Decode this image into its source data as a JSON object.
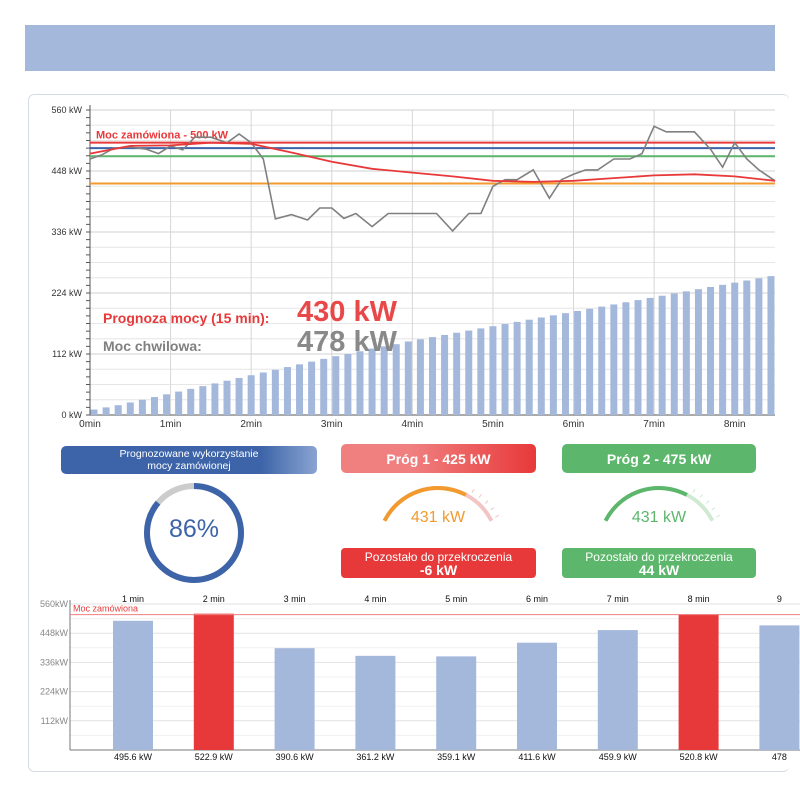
{
  "colors": {
    "accent_blue": "#3d64a8",
    "bar_blue": "#a4b8dc",
    "red": "#e8393a",
    "light_red": "#f08080",
    "green": "#5cb66b",
    "orange": "#f29a2e",
    "gray_line": "#808080",
    "header_band": "#a4b8dc"
  },
  "chart_data": [
    {
      "type": "line",
      "y_tick_labels": [
        "0 kW",
        "112 kW",
        "224 kW",
        "336 kW",
        "448 kW",
        "560 kW"
      ],
      "ylim": [
        0,
        560
      ],
      "x_tick_labels": [
        "0min",
        "1min",
        "2min",
        "3min",
        "4min",
        "5min",
        "6min",
        "7min",
        "8min"
      ],
      "xlim": [
        0,
        8.5
      ],
      "grid": true,
      "reference_lines": [
        {
          "label": "Moc zamówiona - 500 kW",
          "value": 500,
          "color": "#e8393a"
        },
        {
          "label": "",
          "value": 490,
          "color": "#3d64a8"
        },
        {
          "label": "",
          "value": 475,
          "color": "#5cb66b"
        },
        {
          "label": "",
          "value": 425,
          "color": "#f29a2e"
        }
      ],
      "series": [
        {
          "color": "#808080",
          "x": [
            0,
            0.15,
            0.3,
            0.5,
            0.7,
            0.85,
            1.0,
            1.15,
            1.3,
            1.5,
            1.7,
            1.85,
            2.0,
            2.15,
            2.3,
            2.5,
            2.7,
            2.85,
            3.0,
            3.15,
            3.3,
            3.5,
            3.7,
            3.85,
            4.0,
            4.15,
            4.3,
            4.5,
            4.7,
            4.85,
            5.0,
            5.15,
            5.3,
            5.5,
            5.7,
            5.85,
            6.0,
            6.15,
            6.3,
            6.5,
            6.7,
            6.85,
            7.0,
            7.15,
            7.3,
            7.5,
            7.7,
            7.85,
            8.0,
            8.15,
            8.3,
            8.5
          ],
          "y": [
            470,
            478,
            490,
            492,
            488,
            480,
            494,
            487,
            510,
            510,
            500,
            516,
            500,
            470,
            360,
            368,
            358,
            380,
            380,
            361,
            370,
            346,
            370,
            370,
            370,
            370,
            370,
            338,
            370,
            370,
            420,
            432,
            432,
            450,
            398,
            432,
            442,
            450,
            450,
            470,
            470,
            480,
            530,
            520,
            520,
            520,
            488,
            455,
            500,
            470,
            450,
            430
          ]
        },
        {
          "color": "#e8393a",
          "x": [
            0,
            0.5,
            1.0,
            1.5,
            2.0,
            2.5,
            3.0,
            3.5,
            4.0,
            4.5,
            5.0,
            5.5,
            6.0,
            6.5,
            7.0,
            7.5,
            8.0,
            8.5
          ],
          "y": [
            480,
            494,
            495,
            500,
            498,
            482,
            465,
            452,
            445,
            438,
            430,
            428,
            430,
            435,
            440,
            442,
            438,
            430
          ]
        },
        {
          "type": "bar",
          "color": "#a4b8dc",
          "x": [
            0.05,
            0.2,
            0.35,
            0.5,
            0.65,
            0.8,
            0.95,
            1.1,
            1.25,
            1.4,
            1.55,
            1.7,
            1.85,
            2.0,
            2.15,
            2.3,
            2.45,
            2.6,
            2.75,
            2.9,
            3.05,
            3.2,
            3.35,
            3.5,
            3.65,
            3.8,
            3.95,
            4.1,
            4.25,
            4.4,
            4.55,
            4.7,
            4.85,
            5.0,
            5.15,
            5.3,
            5.45,
            5.6,
            5.75,
            5.9,
            6.05,
            6.2,
            6.35,
            6.5,
            6.65,
            6.8,
            6.95,
            7.1,
            7.25,
            7.4,
            7.55,
            7.7,
            7.85,
            8.0,
            8.15,
            8.3,
            8.45
          ],
          "y": [
            10,
            14,
            18,
            23,
            28,
            33,
            38,
            43,
            48,
            53,
            58,
            63,
            68,
            73,
            78,
            83,
            88,
            93,
            98,
            103,
            108,
            112,
            117,
            122,
            126,
            130,
            135,
            139,
            143,
            147,
            151,
            155,
            159,
            163,
            167,
            171,
            175,
            179,
            183,
            187,
            191,
            195,
            199,
            203,
            207,
            211,
            215,
            219,
            223,
            227,
            231,
            235,
            239,
            243,
            247,
            251,
            255
          ]
        }
      ],
      "annotations": {
        "forecast_label": "Prognoza mocy (15 min):",
        "forecast_value": "430 kW",
        "current_label": "Moc chwilowa:",
        "current_value": "478 kW"
      }
    },
    {
      "type": "bar",
      "y_tick_labels": [
        "112kW",
        "224kW",
        "336kW",
        "448kW",
        "560kW"
      ],
      "ylim": [
        0,
        560
      ],
      "categories": [
        "1 min",
        "2 min",
        "3 min",
        "4 min",
        "5 min",
        "6 min",
        "7 min",
        "8 min",
        "9"
      ],
      "values": [
        495.6,
        522.9,
        390.6,
        361.2,
        359.1,
        411.6,
        459.9,
        520.8,
        478
      ],
      "value_labels": [
        "495.6 kW",
        "522.9 kW",
        "390.6 kW",
        "361.2 kW",
        "359.1 kW",
        "411.6 kW",
        "459.9 kW",
        "520.8 kW",
        "478"
      ],
      "bar_colors": [
        "#a4b8dc",
        "#e8393a",
        "#a4b8dc",
        "#a4b8dc",
        "#a4b8dc",
        "#a4b8dc",
        "#a4b8dc",
        "#e8393a",
        "#a4b8dc"
      ],
      "reference_line": {
        "label": "Moc zamówiona",
        "value": 500,
        "color": "#f08080"
      }
    }
  ],
  "widgets": {
    "usage": {
      "header": [
        "Prognozowane wykorzystanie",
        "mocy zamówionej"
      ],
      "value_text": "86%",
      "percent": 86
    },
    "threshold1": {
      "header": "Próg 1 - 425 kW",
      "gauge_value": "431 kW",
      "gauge_level": 0.72,
      "remaining_label": "Pozostało do przekroczenia",
      "remaining_value": "-6 kW"
    },
    "threshold2": {
      "header": "Próg 2 - 475 kW",
      "gauge_value": "431 kW",
      "gauge_level": 0.72,
      "remaining_label": "Pozostało do przekroczenia",
      "remaining_value": "44 kW"
    }
  }
}
